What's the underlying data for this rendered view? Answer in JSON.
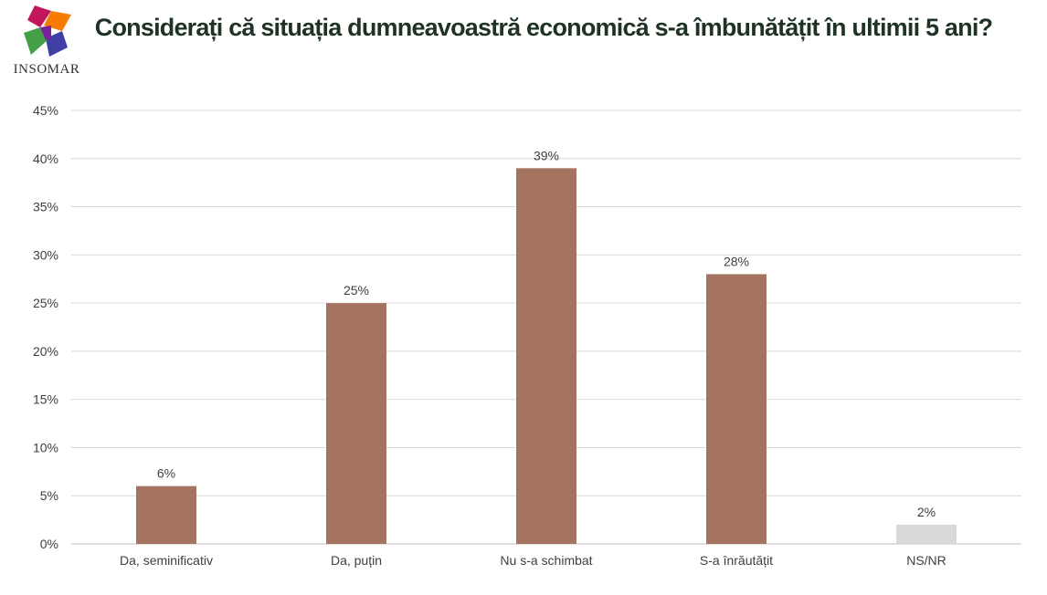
{
  "logo": {
    "text": "INSOMAR"
  },
  "colors": {
    "bar": "#a47461",
    "bar_nsnr": "#d9d9d9",
    "grid": "#d9d9d9",
    "text": "#404040",
    "title": "#1f3324"
  },
  "chart_data": {
    "type": "bar",
    "title": "Considerați că situația dumneavoastră economică s-a îmbunătățit în ultimii 5 ani?",
    "categories": [
      "Da, seminificativ",
      "Da, puțin",
      "Nu s-a schimbat",
      "S-a înrăutățit",
      "NS/NR"
    ],
    "values": [
      6,
      25,
      39,
      28,
      2
    ],
    "data_labels": [
      "6%",
      "25%",
      "39%",
      "28%",
      "2%"
    ],
    "bar_colors": [
      "#a47461",
      "#a47461",
      "#a47461",
      "#a47461",
      "#d9d9d9"
    ],
    "yticks": [
      "0%",
      "5%",
      "10%",
      "15%",
      "20%",
      "25%",
      "30%",
      "35%",
      "40%",
      "45%"
    ],
    "ylim": [
      0,
      45
    ],
    "grid": true,
    "xlabel": "",
    "ylabel": ""
  }
}
